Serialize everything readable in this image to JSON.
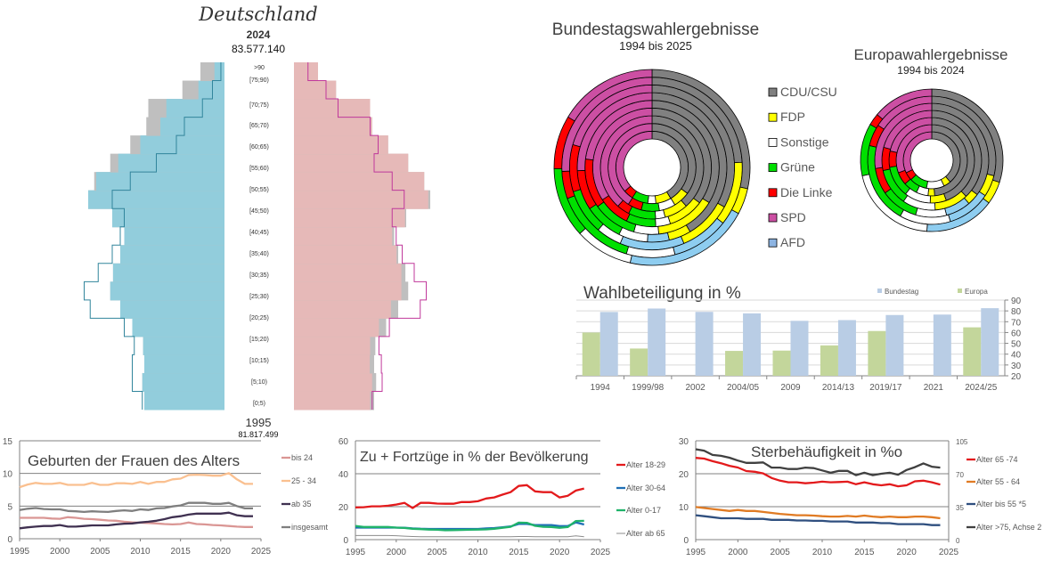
{
  "pyramid": {
    "title": "Deutschland",
    "year": "2024",
    "population": "83.577.140",
    "compare_year": "1995",
    "compare_population": "81.817.499",
    "age_groups": [
      "[0;5)",
      "[5;10)",
      "[10;15)",
      "[15;20)",
      "[20;25)",
      "[25;30)",
      "[30;35)",
      "[35;40)",
      "[40;45)",
      "[45;50)",
      "[50;55)",
      "[55;60)",
      "[60;65)",
      "[65;70)",
      "[70;75)",
      "[75;90)",
      "[75;90)",
      "[75;90)",
      ">90"
    ],
    "age_labels_shown": [
      ">90",
      "[75;90)",
      "[70;75)",
      "[65;70)",
      "[60;65)",
      "[55;60)",
      "[50;55)",
      "[45;50)",
      "[40;45)",
      "[35;40)",
      "[30;35)",
      "[25;30)",
      "[20;25)",
      "[15;20)",
      "[10;15)",
      "[5;10)",
      "[0;5)"
    ],
    "male_2024": [
      2000,
      2050,
      2000,
      2030,
      2300,
      2600,
      2850,
      2780,
      2600,
      2500,
      2800,
      3400,
      3200,
      2650,
      2100,
      1600,
      1450,
      650,
      250
    ],
    "female_2024": [
      1900,
      1950,
      1890,
      1900,
      2120,
      2420,
      2680,
      2680,
      2560,
      2450,
      2770,
      3350,
      3250,
      2850,
      2350,
      1950,
      1900,
      1050,
      600
    ],
    "male_1995": [
      2050,
      2300,
      2300,
      2250,
      2500,
      3350,
      3500,
      3150,
      2800,
      2600,
      2500,
      2800,
      2350,
      1700,
      1200,
      1000,
      550,
      300,
      90
    ],
    "female_1995": [
      1950,
      2200,
      2180,
      2120,
      2380,
      3150,
      3300,
      3000,
      2700,
      2550,
      2450,
      2750,
      2450,
      2000,
      2100,
      1900,
      1100,
      800,
      350
    ],
    "colors": {
      "male": "#92cddc",
      "female": "#e6b9b8",
      "surplus": "#bfbfbf",
      "male_1995": "#31859c",
      "female_1995": "#c0399b"
    }
  },
  "elections": {
    "parties": [
      "CDU/CSU",
      "FDP",
      "AFD",
      "Sonstige",
      "Grüne",
      "Die Linke",
      "SPD"
    ],
    "legend": [
      "CDU/CSU",
      "FDP",
      "Sonstige",
      "Grüne",
      "Die Linke",
      "SPD",
      "AFD"
    ],
    "legend_colors": [
      "#808080",
      "#ffff00",
      "#ffffff",
      "#00e000",
      "#ff0000",
      "#cc4fa3",
      "#8db4e2"
    ],
    "colors": {
      "CDU/CSU": "#808080",
      "FDP": "#ffff00",
      "AFD": "#8ecdf0",
      "Sonstige": "#ffffff",
      "Grüne": "#00e000",
      "Die Linke": "#ff0000",
      "SPD": "#cc4fa3"
    },
    "bundestag": {
      "title": "Bundestagswahlergebnisse",
      "subtitle": "1994 bis 2025",
      "years": [
        "1994",
        "1998",
        "2002",
        "2005",
        "2009",
        "2013",
        "2017",
        "2021",
        "2025"
      ],
      "results": [
        [
          41.4,
          6.9,
          0,
          3.6,
          7.3,
          4.4,
          36.4
        ],
        [
          35.1,
          6.2,
          0,
          6.0,
          6.7,
          5.1,
          40.9
        ],
        [
          38.5,
          7.4,
          0,
          3.0,
          8.6,
          4.0,
          38.5
        ],
        [
          35.2,
          9.8,
          0,
          4.0,
          8.1,
          8.7,
          34.2
        ],
        [
          33.8,
          14.6,
          0,
          6.0,
          10.7,
          11.9,
          23.0
        ],
        [
          41.5,
          4.8,
          4.7,
          6.3,
          8.4,
          8.6,
          25.7
        ],
        [
          32.9,
          10.7,
          12.6,
          5.0,
          8.9,
          9.2,
          20.5
        ],
        [
          24.1,
          11.5,
          10.3,
          8.7,
          14.8,
          4.9,
          25.7
        ],
        [
          28.5,
          4.3,
          20.8,
          9.6,
          11.6,
          8.8,
          16.4
        ]
      ]
    },
    "europa": {
      "title": "Europawahlergebnisse",
      "subtitle": "1994 bis 2024",
      "years": [
        "1994",
        "1999",
        "2004",
        "2009",
        "2014",
        "2019",
        "2024"
      ],
      "results": [
        [
          38.8,
          4.1,
          0,
          10.1,
          10.1,
          4.7,
          32.2
        ],
        [
          48.7,
          3.0,
          0,
          5.4,
          6.4,
          5.8,
          30.7
        ],
        [
          44.5,
          6.1,
          0,
          9.9,
          11.9,
          6.1,
          21.5
        ],
        [
          37.9,
          11.0,
          0,
          10.7,
          12.1,
          7.5,
          20.8
        ],
        [
          35.3,
          3.4,
          7.1,
          8.8,
          10.7,
          7.4,
          27.3
        ],
        [
          28.9,
          5.4,
          11.0,
          12.9,
          20.5,
          5.5,
          15.8
        ],
        [
          30.0,
          5.2,
          15.9,
          20.4,
          11.9,
          2.7,
          13.9
        ]
      ]
    }
  },
  "chart_data": [
    {
      "type": "bar",
      "title": "Wahlbeteiligung in %",
      "categories": [
        "1994",
        "1999/98",
        "2002",
        "2004/05",
        "2009",
        "2014/13",
        "2019/17",
        "2021",
        "2024/25"
      ],
      "series": [
        {
          "name": "Europa",
          "color": "#c3d69b",
          "values": [
            60.0,
            45.2,
            null,
            43.0,
            43.3,
            48.1,
            61.4,
            null,
            64.8
          ]
        },
        {
          "name": "Bundestag",
          "color": "#b9cde5",
          "values": [
            79.0,
            82.2,
            79.1,
            77.7,
            70.8,
            71.5,
            76.2,
            76.6,
            82.5
          ]
        }
      ],
      "legend": [
        "Bundestag",
        "Europa"
      ],
      "ylim": [
        20,
        90
      ],
      "yticks": [
        20,
        30,
        40,
        50,
        60,
        70,
        80,
        90
      ],
      "y_axis_side": "right",
      "grid": true,
      "legend_position": "top-right"
    },
    {
      "type": "line",
      "title": "Geburten der Frauen des Alters",
      "x": [
        1995,
        1996,
        1997,
        1998,
        1999,
        2000,
        2001,
        2002,
        2003,
        2004,
        2005,
        2006,
        2007,
        2008,
        2009,
        2010,
        2011,
        2012,
        2013,
        2014,
        2015,
        2016,
        2017,
        2018,
        2019,
        2020,
        2021,
        2022,
        2023,
        2024
      ],
      "series": [
        {
          "name": "bis  24",
          "color": "#da9694",
          "values": [
            3.2,
            3.2,
            3.2,
            3.2,
            3.1,
            3.05,
            3.3,
            3.2,
            3.05,
            3.0,
            2.9,
            2.8,
            2.75,
            2.6,
            2.5,
            2.45,
            2.4,
            2.35,
            2.25,
            2.2,
            2.25,
            2.5,
            2.25,
            2.2,
            2.1,
            2.05,
            1.95,
            1.85,
            1.8,
            1.8
          ]
        },
        {
          "name": "25 - 34",
          "color": "#fac090",
          "values": [
            7.9,
            8.3,
            8.55,
            8.4,
            8.4,
            8.55,
            8.25,
            8.25,
            8.25,
            8.55,
            8.25,
            8.25,
            8.5,
            8.5,
            8.4,
            8.7,
            8.4,
            8.7,
            8.7,
            9.1,
            9.2,
            9.75,
            9.8,
            9.75,
            9.65,
            9.65,
            10.05,
            9.1,
            8.4,
            8.4
          ]
        },
        {
          "name": "ab  35",
          "color": "#403151",
          "values": [
            1.6,
            1.75,
            1.85,
            1.95,
            1.95,
            2.1,
            1.85,
            1.85,
            1.95,
            2.05,
            2.05,
            2.05,
            2.2,
            2.3,
            2.35,
            2.5,
            2.6,
            2.75,
            3.0,
            3.3,
            3.45,
            3.7,
            3.85,
            3.85,
            3.85,
            3.85,
            4.0,
            3.6,
            3.45,
            3.45
          ]
        },
        {
          "name": "insgesamt",
          "color": "#7f7f7f",
          "values": [
            4.4,
            4.6,
            4.7,
            4.55,
            4.5,
            4.5,
            4.25,
            4.2,
            4.1,
            4.2,
            4.15,
            4.1,
            4.25,
            4.35,
            4.25,
            4.5,
            4.4,
            4.65,
            4.7,
            4.95,
            5.1,
            5.5,
            5.5,
            5.5,
            5.35,
            5.35,
            5.5,
            5.0,
            4.65,
            4.65
          ]
        }
      ],
      "xlim": [
        1995,
        2025
      ],
      "xticks": [
        1995,
        2000,
        2005,
        2010,
        2015,
        2020,
        2025
      ],
      "ylim": [
        0,
        15
      ],
      "yticks": [
        0,
        5,
        10,
        15
      ],
      "grid": true,
      "legend_position": "right"
    },
    {
      "type": "line",
      "title": "Zu + Fortzüge in % der Bevölkerung",
      "x": [
        1995,
        1996,
        1997,
        1998,
        1999,
        2000,
        2001,
        2002,
        2003,
        2004,
        2005,
        2006,
        2007,
        2008,
        2009,
        2010,
        2011,
        2012,
        2013,
        2014,
        2015,
        2016,
        2017,
        2018,
        2019,
        2020,
        2021,
        2022,
        2023
      ],
      "series": [
        {
          "name": "Alter 18-29",
          "color": "#e31a1c",
          "values": [
            19.5,
            19.7,
            20.2,
            20.2,
            20.6,
            21.3,
            22.3,
            19.2,
            22.4,
            22.3,
            21.9,
            21.8,
            21.8,
            22.8,
            22.8,
            23.3,
            25.0,
            25.6,
            27.3,
            28.8,
            32.6,
            33.1,
            29.3,
            28.8,
            28.8,
            25.6,
            26.6,
            29.8,
            31.0
          ]
        },
        {
          "name": "Alter 30-64",
          "color": "#1f6fb5",
          "values": [
            7.3,
            7.3,
            7.3,
            7.3,
            7.3,
            7.3,
            7.2,
            6.8,
            6.6,
            6.5,
            6.5,
            6.5,
            6.5,
            6.5,
            6.5,
            6.5,
            6.8,
            7.0,
            7.5,
            8.0,
            9.5,
            9.5,
            8.8,
            8.8,
            8.8,
            8.2,
            8.2,
            10.5,
            9.2
          ]
        },
        {
          "name": "Alter 0-17",
          "color": "#1fb36a",
          "values": [
            8.3,
            7.7,
            7.7,
            7.7,
            7.7,
            7.3,
            7.1,
            6.6,
            6.4,
            6.1,
            6.0,
            5.7,
            5.8,
            5.9,
            6.0,
            6.1,
            6.2,
            6.6,
            7.2,
            7.8,
            10.3,
            10.2,
            8.4,
            7.8,
            7.7,
            7.2,
            7.6,
            11.3,
            11.4
          ]
        },
        {
          "name": "Alter ab 65",
          "color": "#8c8c8c",
          "values": [
            2.5,
            2.5,
            2.5,
            2.5,
            2.5,
            2.4,
            2.1,
            1.9,
            1.8,
            1.8,
            1.8,
            1.8,
            1.8,
            1.8,
            1.8,
            1.8,
            1.8,
            1.8,
            1.8,
            1.8,
            1.9,
            1.9,
            1.8,
            1.8,
            1.8,
            1.8,
            1.8,
            2.3,
            1.8
          ]
        }
      ],
      "xlim": [
        1995,
        2025
      ],
      "xticks": [
        1995,
        2000,
        2005,
        2010,
        2015,
        2020,
        2025
      ],
      "ylim": [
        0,
        60
      ],
      "yticks": [
        0,
        20,
        40,
        60
      ],
      "grid": true,
      "legend_position": "right"
    },
    {
      "type": "line",
      "title": "Sterbehäufigkeit in %o",
      "x": [
        1995,
        1996,
        1997,
        1998,
        1999,
        2000,
        2001,
        2002,
        2003,
        2004,
        2005,
        2006,
        2007,
        2008,
        2009,
        2010,
        2011,
        2012,
        2013,
        2014,
        2015,
        2016,
        2017,
        2018,
        2019,
        2020,
        2021,
        2022,
        2023,
        2024
      ],
      "series": [
        {
          "name": "Alter 65 -74",
          "color": "#e31a1c",
          "axis": "left",
          "values": [
            24.8,
            24.6,
            23.8,
            23.2,
            22.4,
            21.9,
            20.8,
            20.6,
            20.1,
            18.7,
            17.9,
            17.4,
            17.4,
            17.1,
            17.3,
            17.6,
            17.4,
            17.5,
            17.6,
            16.8,
            17.4,
            16.8,
            16.5,
            16.8,
            16.2,
            16.5,
            17.7,
            17.9,
            17.4,
            16.7
          ]
        },
        {
          "name": "Alter 55 - 64",
          "color": "#e07b24",
          "axis": "left",
          "values": [
            9.9,
            9.6,
            9.3,
            9.0,
            8.7,
            9.0,
            8.7,
            8.7,
            8.4,
            8.1,
            7.8,
            7.6,
            7.4,
            7.4,
            7.3,
            7.1,
            7.0,
            7.0,
            7.2,
            7.0,
            7.3,
            7.0,
            6.8,
            7.0,
            6.8,
            6.8,
            7.0,
            7.0,
            6.8,
            6.5
          ]
        },
        {
          "name": "Alter bis 55 *5",
          "color": "#2f4f7f",
          "axis": "left",
          "values": [
            7.4,
            7.1,
            6.8,
            6.5,
            6.5,
            6.5,
            6.3,
            6.3,
            6.3,
            6.0,
            6.0,
            6.0,
            5.8,
            5.8,
            5.7,
            5.7,
            5.5,
            5.5,
            5.5,
            5.2,
            5.2,
            5.2,
            5.0,
            5.0,
            4.7,
            4.7,
            4.7,
            4.7,
            4.4,
            4.4
          ]
        },
        {
          "name": "Alter >75, Achse 2",
          "color": "#404040",
          "axis": "right",
          "values": [
            96,
            94.5,
            90,
            89,
            87,
            84,
            81.5,
            81.5,
            82,
            76.5,
            76.5,
            75,
            75,
            76.5,
            76,
            73.5,
            71,
            73,
            73,
            68.5,
            71,
            68.5,
            70,
            71,
            69,
            74,
            77,
            81,
            77.5,
            76.5
          ]
        }
      ],
      "xlim": [
        1995,
        2025
      ],
      "xticks": [
        1995,
        2000,
        2005,
        2010,
        2015,
        2020,
        2025
      ],
      "ylim": [
        0,
        30
      ],
      "yticks": [
        0,
        10,
        20,
        30
      ],
      "y2lim": [
        0,
        105
      ],
      "y2ticks": [
        0,
        35,
        70,
        105
      ],
      "grid": true,
      "legend_position": "right"
    }
  ]
}
